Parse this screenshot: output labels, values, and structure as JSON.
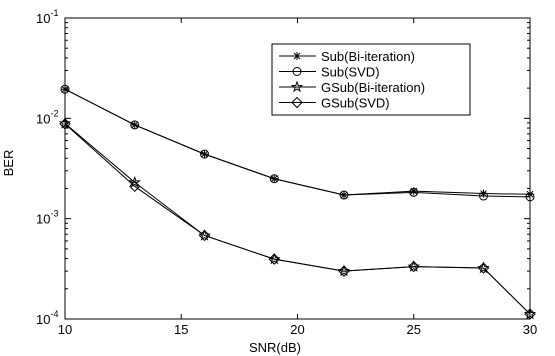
{
  "chart_data": {
    "type": "line",
    "xlabel": "SNR(dB)",
    "ylabel": "BER",
    "yscale": "log",
    "xlim": [
      10,
      30
    ],
    "ylim": [
      0.0001,
      0.1
    ],
    "x_ticks": [
      10,
      15,
      20,
      25,
      30
    ],
    "x_tick_labels": [
      "10",
      "15",
      "20",
      "25",
      "30"
    ],
    "y_ticks": [
      0.0001,
      0.001,
      0.01,
      0.1
    ],
    "y_tick_labels": [
      {
        "base": "10",
        "exp": "-4"
      },
      {
        "base": "10",
        "exp": "-3"
      },
      {
        "base": "10",
        "exp": "-2"
      },
      {
        "base": "10",
        "exp": "-1"
      }
    ],
    "grid": false,
    "legend_position": "top-right",
    "x": [
      10,
      13,
      16,
      19,
      22,
      25,
      28,
      30
    ],
    "series": [
      {
        "name": "Sub(Bi-iteration)",
        "marker": "asterisk",
        "values": [
          0.0195,
          0.0086,
          0.0044,
          0.0025,
          0.00172,
          0.00188,
          0.00178,
          0.00175
        ]
      },
      {
        "name": "Sub(SVD)",
        "marker": "circle",
        "values": [
          0.0195,
          0.0086,
          0.0044,
          0.0025,
          0.00172,
          0.00183,
          0.00168,
          0.00165
        ]
      },
      {
        "name": "GSub(Bi-iteration)",
        "marker": "star",
        "values": [
          0.0089,
          0.0023,
          0.00068,
          0.000395,
          0.0003,
          0.000333,
          0.000322,
          0.000112
        ]
      },
      {
        "name": "GSub(SVD)",
        "marker": "diamond",
        "values": [
          0.0088,
          0.0021,
          0.00068,
          0.000395,
          0.0003,
          0.000333,
          0.000322,
          0.000112
        ]
      }
    ]
  }
}
